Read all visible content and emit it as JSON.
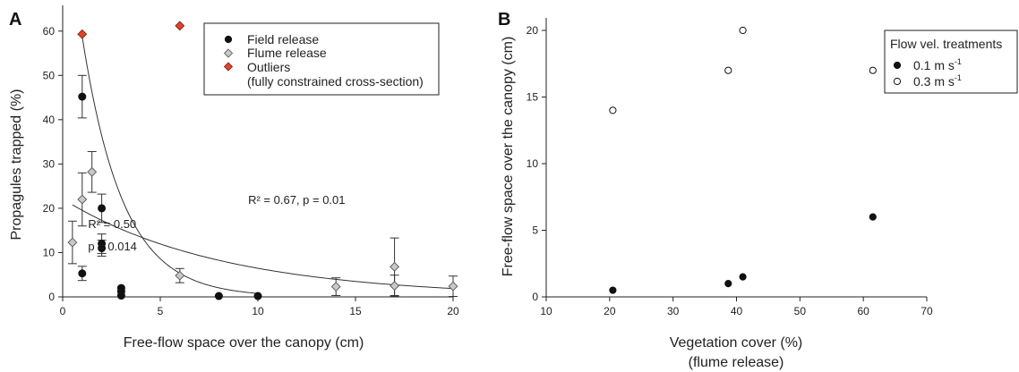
{
  "chart_data": [
    {
      "panel": "A",
      "type": "scatter",
      "xlabel": "Free-flow space over the canopy (cm)",
      "ylabel": "Propagules trapped (%)",
      "xlim": [
        0,
        20
      ],
      "ylim": [
        0,
        65
      ],
      "x_ticks": [
        "0",
        "5",
        "10",
        "15",
        "20"
      ],
      "y_ticks": [
        "0",
        "10",
        "20",
        "30",
        "40",
        "50",
        "60"
      ],
      "legend": {
        "placement": "top-right",
        "entries": [
          {
            "label": "Field release",
            "marker": "circle",
            "color": "#111111"
          },
          {
            "label": "Flume release",
            "marker": "diamond",
            "color": "#c8c8c8"
          },
          {
            "label": "Outliers",
            "marker": "diamond",
            "color": "#e0452a"
          },
          {
            "label": "(fully constrained cross-section)",
            "marker": "none",
            "color": ""
          }
        ]
      },
      "annotations": [
        {
          "text": "R² = 0.50",
          "x": 1.3,
          "y": 15.5
        },
        {
          "text": "p = 0.014",
          "x": 1.3,
          "y": 10.5
        },
        {
          "text": "R² = 0.67, p = 0.01",
          "x": 9.5,
          "y": 21
        }
      ],
      "series": [
        {
          "name": "Field release",
          "marker": "circle",
          "color": "#111111",
          "points": [
            {
              "x": 1,
              "y": 45.2,
              "err": 4.8
            },
            {
              "x": 1,
              "y": 5.3,
              "err": 1.6
            },
            {
              "x": 2,
              "y": 20,
              "err": 3.2
            },
            {
              "x": 2,
              "y": 12,
              "err": 2.2
            },
            {
              "x": 2,
              "y": 11,
              "err": 1.8
            },
            {
              "x": 3,
              "y": 2,
              "err": 0
            },
            {
              "x": 3,
              "y": 1.2,
              "err": 0
            },
            {
              "x": 3,
              "y": 0.3,
              "err": 0
            },
            {
              "x": 8,
              "y": 0.2,
              "err": 0
            },
            {
              "x": 10,
              "y": 0.2,
              "err": 0
            }
          ]
        },
        {
          "name": "Flume release",
          "marker": "diamond",
          "color": "#c8c8c8",
          "points": [
            {
              "x": 0.5,
              "y": 12.3,
              "err": 4.8
            },
            {
              "x": 1,
              "y": 22,
              "err": 6
            },
            {
              "x": 1.5,
              "y": 28.2,
              "err": 4.6
            },
            {
              "x": 6,
              "y": 4.8,
              "err": 1.6
            },
            {
              "x": 14,
              "y": 2.3,
              "err": 2
            },
            {
              "x": 17,
              "y": 6.8,
              "err": 6.5
            },
            {
              "x": 17,
              "y": 2.5,
              "err": 2.4
            },
            {
              "x": 20,
              "y": 2.4,
              "err": 2.3
            }
          ]
        },
        {
          "name": "Outliers",
          "marker": "diamond",
          "color": "#e0452a",
          "points": [
            {
              "x": 1,
              "y": 59.3,
              "err": 0
            },
            {
              "x": 6,
              "y": 61.2,
              "err": 0
            }
          ]
        }
      ],
      "fits": [
        {
          "type": "exponential",
          "a": 95,
          "b": 0.48,
          "x_range": [
            1,
            10
          ]
        },
        {
          "type": "exponential",
          "a": 22.1,
          "b": 0.123,
          "x_range": [
            0.5,
            20
          ]
        }
      ]
    },
    {
      "panel": "B",
      "type": "scatter",
      "xlabel": "Vegetation cover (%)",
      "xlabel_line2": "(flume release)",
      "ylabel": "Free-flow space over the canopy (cm)",
      "xlim": [
        10,
        70
      ],
      "ylim": [
        0,
        20
      ],
      "x_ticks": [
        "10",
        "20",
        "30",
        "40",
        "50",
        "60",
        "70"
      ],
      "y_ticks": [
        "0",
        "5",
        "10",
        "15",
        "20"
      ],
      "legend": {
        "placement": "top-right",
        "title": "Flow vel. treatments",
        "entries": [
          {
            "label": "0.1 m s",
            "sup": "-1",
            "marker": "filled-circle",
            "color": "#111111"
          },
          {
            "label": "0.3 m s",
            "sup": "-1",
            "marker": "open-circle",
            "color": "#111111"
          }
        ]
      },
      "series": [
        {
          "name": "0.1 m s-1",
          "marker": "filled-circle",
          "points": [
            {
              "x": 20.5,
              "y": 0.5
            },
            {
              "x": 38.7,
              "y": 1
            },
            {
              "x": 41,
              "y": 1.5
            },
            {
              "x": 61.5,
              "y": 6
            }
          ]
        },
        {
          "name": "0.3 m s-1",
          "marker": "open-circle",
          "points": [
            {
              "x": 20.5,
              "y": 14
            },
            {
              "x": 38.7,
              "y": 17
            },
            {
              "x": 41,
              "y": 20
            },
            {
              "x": 61.5,
              "y": 17
            }
          ]
        }
      ]
    }
  ]
}
